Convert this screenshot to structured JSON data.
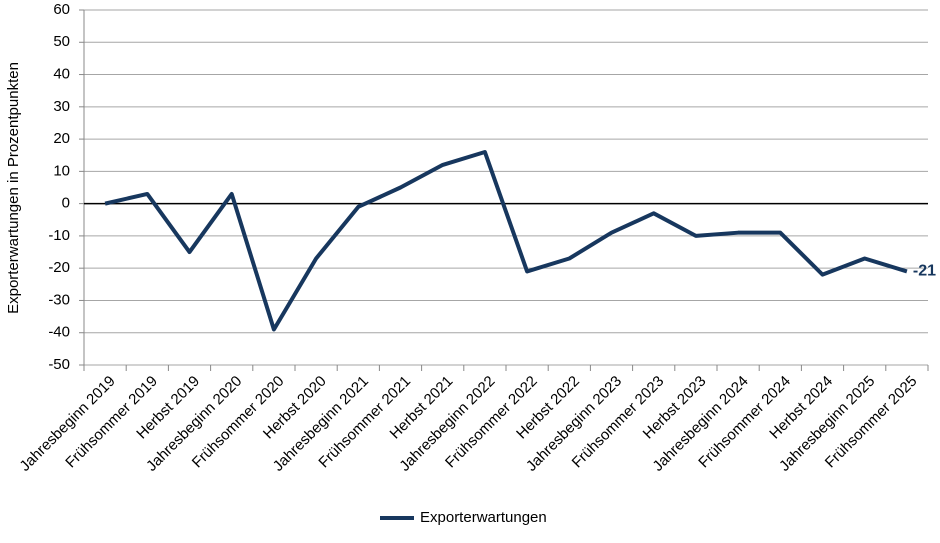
{
  "chart_data": {
    "type": "line",
    "y_axis_label": "Exporterwartungen in Prozentpunkten",
    "categories": [
      "Jahresbeginn 2019",
      "Frühsommer 2019",
      "Herbst 2019",
      "Jahresbeginn 2020",
      "Frühsommer 2020",
      "Herbst 2020",
      "Jahresbeginn 2021",
      "Frühsommer 2021",
      "Herbst 2021",
      "Jahresbeginn 2022",
      "Frühsommer 2022",
      "Herbst 2022",
      "Jahresbeginn 2023",
      "Frühsommer 2023",
      "Herbst 2023",
      "Jahresbeginn 2024",
      "Frühsommer 2024",
      "Herbst 2024",
      "Jahresbeginn 2025",
      "Frühsommer 2025"
    ],
    "series": [
      {
        "name": "Exporterwartungen",
        "color": "#17375e",
        "values": [
          0,
          3,
          -15,
          3,
          -39,
          -17,
          -1,
          5,
          12,
          16,
          -21,
          -17,
          -9,
          -3,
          -10,
          -9,
          -9,
          -22,
          -17,
          -21
        ]
      }
    ],
    "ylim": [
      -50,
      60
    ],
    "yticks": [
      -50,
      -40,
      -30,
      -20,
      -10,
      0,
      10,
      20,
      30,
      40,
      50,
      60
    ],
    "grid": true,
    "legend": "bottom"
  }
}
